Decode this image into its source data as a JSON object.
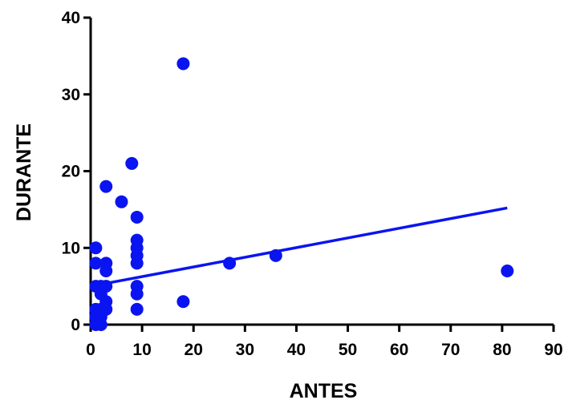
{
  "chart_data": {
    "type": "scatter",
    "title": "",
    "xlabel": "ANTES",
    "ylabel": "DURANTE",
    "xlim": [
      0,
      90
    ],
    "ylim": [
      0,
      40
    ],
    "x_ticks": [
      "0",
      "10",
      "20",
      "30",
      "40",
      "50",
      "60",
      "70",
      "80",
      "90"
    ],
    "y_ticks": [
      "0",
      "10",
      "20",
      "30",
      "40"
    ],
    "grid": false,
    "legend": "none",
    "colors": {
      "points": "#0a14f0",
      "trend_line": "#0a14f0",
      "axes": "#000000"
    },
    "series": [
      {
        "points": [
          {
            "x": 18,
            "y": 34
          },
          {
            "x": 8,
            "y": 21
          },
          {
            "x": 3,
            "y": 18
          },
          {
            "x": 6,
            "y": 16
          },
          {
            "x": 9,
            "y": 14
          },
          {
            "x": 1,
            "y": 10
          },
          {
            "x": 9,
            "y": 11
          },
          {
            "x": 9,
            "y": 10
          },
          {
            "x": 9,
            "y": 9
          },
          {
            "x": 9,
            "y": 8
          },
          {
            "x": 1,
            "y": 8
          },
          {
            "x": 3,
            "y": 8
          },
          {
            "x": 3,
            "y": 7
          },
          {
            "x": 27,
            "y": 8
          },
          {
            "x": 36,
            "y": 9
          },
          {
            "x": 81,
            "y": 7
          },
          {
            "x": 1,
            "y": 5
          },
          {
            "x": 2,
            "y": 5
          },
          {
            "x": 3,
            "y": 5
          },
          {
            "x": 9,
            "y": 5
          },
          {
            "x": 2,
            "y": 4
          },
          {
            "x": 9,
            "y": 4
          },
          {
            "x": 3,
            "y": 3
          },
          {
            "x": 18,
            "y": 3
          },
          {
            "x": 1,
            "y": 2
          },
          {
            "x": 2,
            "y": 2
          },
          {
            "x": 3,
            "y": 2
          },
          {
            "x": 9,
            "y": 2
          },
          {
            "x": 1,
            "y": 1
          },
          {
            "x": 2,
            "y": 1
          },
          {
            "x": 1,
            "y": 0
          },
          {
            "x": 2,
            "y": 0
          }
        ]
      }
    ],
    "trend_line": {
      "x": [
        0,
        81
      ],
      "y": [
        5.0,
        15.2
      ]
    }
  }
}
